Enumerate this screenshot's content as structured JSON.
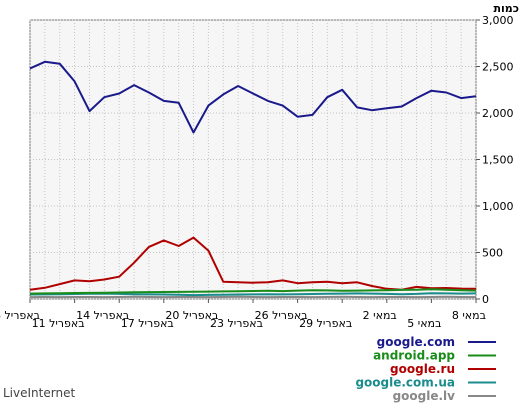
{
  "brand": "LiveInternet",
  "chart_data": {
    "type": "line",
    "ylabel": "כמות",
    "ylim": [
      0,
      3000
    ],
    "y_ticks": [
      "0",
      "500",
      "1,000",
      "1,500",
      "2,000",
      "2,500",
      "3,000"
    ],
    "y_tick_values": [
      0,
      500,
      1000,
      1500,
      2000,
      2500,
      3000
    ],
    "grid": true,
    "x_tick_labels": [
      {
        "label": "8 במאי",
        "index": 0,
        "row": 0
      },
      {
        "label": "5 במאי",
        "index": 3,
        "row": 1
      },
      {
        "label": "2 במאי",
        "index": 6,
        "row": 0
      },
      {
        "label": "29 באפריל",
        "index": 9,
        "row": 1
      },
      {
        "label": "26 באפריל",
        "index": 12,
        "row": 0
      },
      {
        "label": "23 באפריל",
        "index": 15,
        "row": 1
      },
      {
        "label": "20 באפריל",
        "index": 18,
        "row": 0
      },
      {
        "label": "17 באפריל",
        "index": 21,
        "row": 1
      },
      {
        "label": "14 באפריל",
        "index": 24,
        "row": 0
      },
      {
        "label": "11 באפריל",
        "index": 27,
        "row": 1
      },
      {
        "label": "8 באפריל",
        "index": 30,
        "row": 0
      }
    ],
    "series": [
      {
        "name": "google.com",
        "color": "#1a1a8c",
        "values": [
          2180,
          2160,
          2220,
          2240,
          2160,
          2070,
          2050,
          2030,
          2060,
          2250,
          2170,
          1980,
          1960,
          2080,
          2130,
          2210,
          2290,
          2200,
          2080,
          1790,
          2110,
          2130,
          2220,
          2300,
          2210,
          2170,
          2020,
          2340,
          2530,
          2550,
          2480
        ]
      },
      {
        "name": "android.app",
        "color": "#1a8c1a",
        "values": [
          90,
          95,
          100,
          105,
          100,
          98,
          95,
          92,
          90,
          88,
          92,
          95,
          90,
          85,
          88,
          86,
          84,
          82,
          80,
          78,
          76,
          75,
          74,
          72,
          70,
          68,
          66,
          64,
          62,
          60,
          58
        ]
      },
      {
        "name": "google.ru",
        "color": "#b00000",
        "values": [
          110,
          112,
          118,
          115,
          130,
          100,
          110,
          140,
          180,
          170,
          185,
          180,
          170,
          200,
          180,
          175,
          180,
          185,
          520,
          660,
          570,
          630,
          560,
          390,
          240,
          210,
          190,
          200,
          160,
          120,
          100
        ]
      },
      {
        "name": "google.com.ua",
        "color": "#1a8c8c",
        "values": [
          60,
          58,
          60,
          62,
          55,
          52,
          55,
          58,
          60,
          58,
          56,
          54,
          52,
          50,
          52,
          50,
          48,
          46,
          44,
          42,
          45,
          48,
          50,
          52,
          55,
          58,
          56,
          54,
          52,
          50,
          48
        ]
      },
      {
        "name": "google.lv",
        "color": "#888888",
        "values": [
          20,
          22,
          24,
          22,
          20,
          21,
          22,
          20,
          22,
          24,
          22,
          20,
          21,
          22,
          20,
          22,
          24,
          22,
          20,
          21,
          22,
          20,
          22,
          24,
          22,
          20,
          21,
          22,
          20,
          22,
          20
        ]
      }
    ]
  }
}
